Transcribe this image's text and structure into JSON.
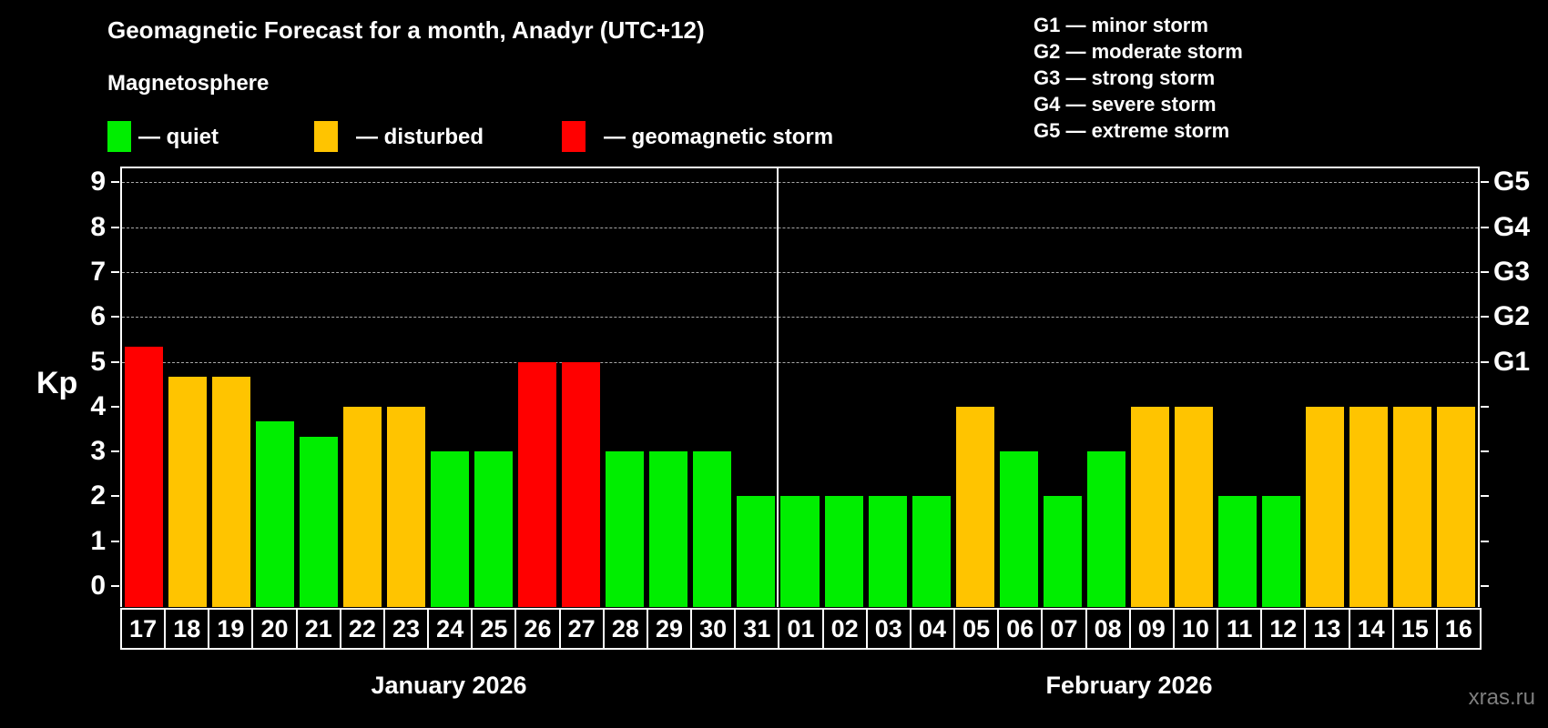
{
  "title": "Geomagnetic Forecast for a month, Anadyr (UTC+12)",
  "subtitle": "Magnetosphere",
  "legend": {
    "quiet_label": "— quiet",
    "disturbed_label": "— disturbed",
    "storm_label": "— geomagnetic storm"
  },
  "g_scale_legend": [
    "G1 — minor storm",
    "G2 — moderate storm",
    "G3 — strong storm",
    "G4 — severe storm",
    "G5 — extreme storm"
  ],
  "watermark": "xras.ru",
  "colors": {
    "quiet": "#00ee00",
    "disturbed": "#ffc400",
    "storm": "#ff0000",
    "grid": "#a8a8a8",
    "frame": "#ffffff",
    "background": "#000000",
    "watermark": "#7e7e7e"
  },
  "chart_data": {
    "type": "bar",
    "title": "Geomagnetic Forecast for a month, Anadyr (UTC+12)",
    "subtitle": "Magnetosphere",
    "ylabel": "Kp",
    "xlabel": "",
    "ylim": [
      -0.47,
      9.41
    ],
    "y_ticks": [
      0,
      1,
      2,
      3,
      4,
      5,
      6,
      7,
      8,
      9
    ],
    "gridlines": [
      5,
      6,
      7,
      8,
      9
    ],
    "grid_style": "horizontal dashed at storm levels only",
    "legend_position": "top-left",
    "right_axis": [
      {
        "label": "G1",
        "value": 5
      },
      {
        "label": "G2",
        "value": 6
      },
      {
        "label": "G3",
        "value": 7
      },
      {
        "label": "G4",
        "value": 8
      },
      {
        "label": "G5",
        "value": 9
      }
    ],
    "months": [
      {
        "label": "January 2026",
        "bar_count": 15
      },
      {
        "label": "February 2026",
        "bar_count": 16
      }
    ],
    "bars": [
      {
        "day": "17",
        "month": "January 2026",
        "kp": 5.33,
        "status": "storm"
      },
      {
        "day": "18",
        "month": "January 2026",
        "kp": 4.67,
        "status": "disturbed"
      },
      {
        "day": "19",
        "month": "January 2026",
        "kp": 4.67,
        "status": "disturbed"
      },
      {
        "day": "20",
        "month": "January 2026",
        "kp": 3.67,
        "status": "quiet"
      },
      {
        "day": "21",
        "month": "January 2026",
        "kp": 3.33,
        "status": "quiet"
      },
      {
        "day": "22",
        "month": "January 2026",
        "kp": 4.0,
        "status": "disturbed"
      },
      {
        "day": "23",
        "month": "January 2026",
        "kp": 4.0,
        "status": "disturbed"
      },
      {
        "day": "24",
        "month": "January 2026",
        "kp": 3.0,
        "status": "quiet"
      },
      {
        "day": "25",
        "month": "January 2026",
        "kp": 3.0,
        "status": "quiet"
      },
      {
        "day": "26",
        "month": "January 2026",
        "kp": 5.0,
        "status": "storm"
      },
      {
        "day": "27",
        "month": "January 2026",
        "kp": 5.0,
        "status": "storm"
      },
      {
        "day": "28",
        "month": "January 2026",
        "kp": 3.0,
        "status": "quiet"
      },
      {
        "day": "29",
        "month": "January 2026",
        "kp": 3.0,
        "status": "quiet"
      },
      {
        "day": "30",
        "month": "January 2026",
        "kp": 3.0,
        "status": "quiet"
      },
      {
        "day": "31",
        "month": "January 2026",
        "kp": 2.0,
        "status": "quiet"
      },
      {
        "day": "01",
        "month": "February 2026",
        "kp": 2.0,
        "status": "quiet"
      },
      {
        "day": "02",
        "month": "February 2026",
        "kp": 2.0,
        "status": "quiet"
      },
      {
        "day": "03",
        "month": "February 2026",
        "kp": 2.0,
        "status": "quiet"
      },
      {
        "day": "04",
        "month": "February 2026",
        "kp": 2.0,
        "status": "quiet"
      },
      {
        "day": "05",
        "month": "February 2026",
        "kp": 4.0,
        "status": "disturbed"
      },
      {
        "day": "06",
        "month": "February 2026",
        "kp": 3.0,
        "status": "quiet"
      },
      {
        "day": "07",
        "month": "February 2026",
        "kp": 2.0,
        "status": "quiet"
      },
      {
        "day": "08",
        "month": "February 2026",
        "kp": 3.0,
        "status": "quiet"
      },
      {
        "day": "09",
        "month": "February 2026",
        "kp": 4.0,
        "status": "disturbed"
      },
      {
        "day": "10",
        "month": "February 2026",
        "kp": 4.0,
        "status": "disturbed"
      },
      {
        "day": "11",
        "month": "February 2026",
        "kp": 2.0,
        "status": "quiet"
      },
      {
        "day": "12",
        "month": "February 2026",
        "kp": 2.0,
        "status": "quiet"
      },
      {
        "day": "13",
        "month": "February 2026",
        "kp": 4.0,
        "status": "disturbed"
      },
      {
        "day": "14",
        "month": "February 2026",
        "kp": 4.0,
        "status": "disturbed"
      },
      {
        "day": "15",
        "month": "February 2026",
        "kp": 4.0,
        "status": "disturbed"
      },
      {
        "day": "16",
        "month": "February 2026",
        "kp": 4.0,
        "status": "disturbed"
      }
    ]
  }
}
